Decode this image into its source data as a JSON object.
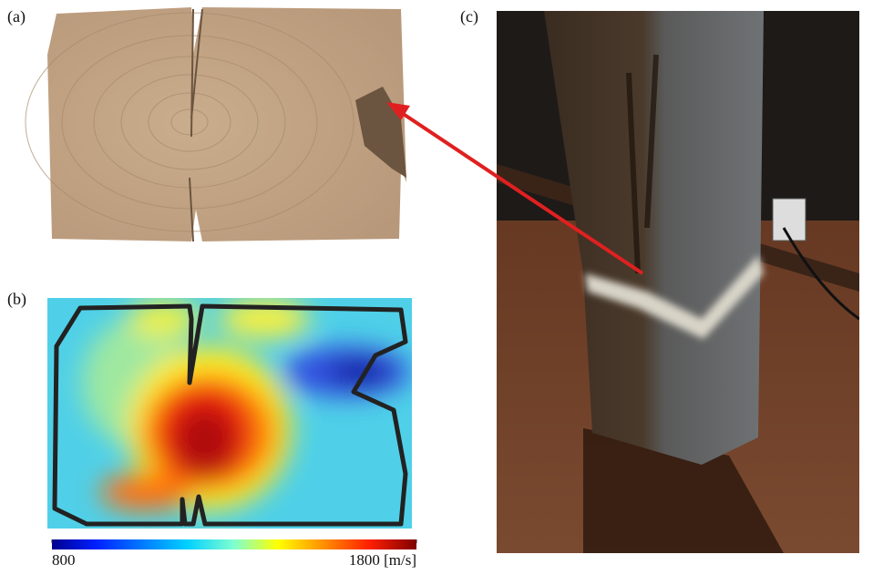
{
  "panels": {
    "a": {
      "label": "(a)"
    },
    "b": {
      "label": "(b)"
    },
    "c": {
      "label": "(c)"
    }
  },
  "colorbar": {
    "ticks": [
      800,
      {
        "value": 1800,
        "label": "1800 [m/s]"
      }
    ]
  }
}
